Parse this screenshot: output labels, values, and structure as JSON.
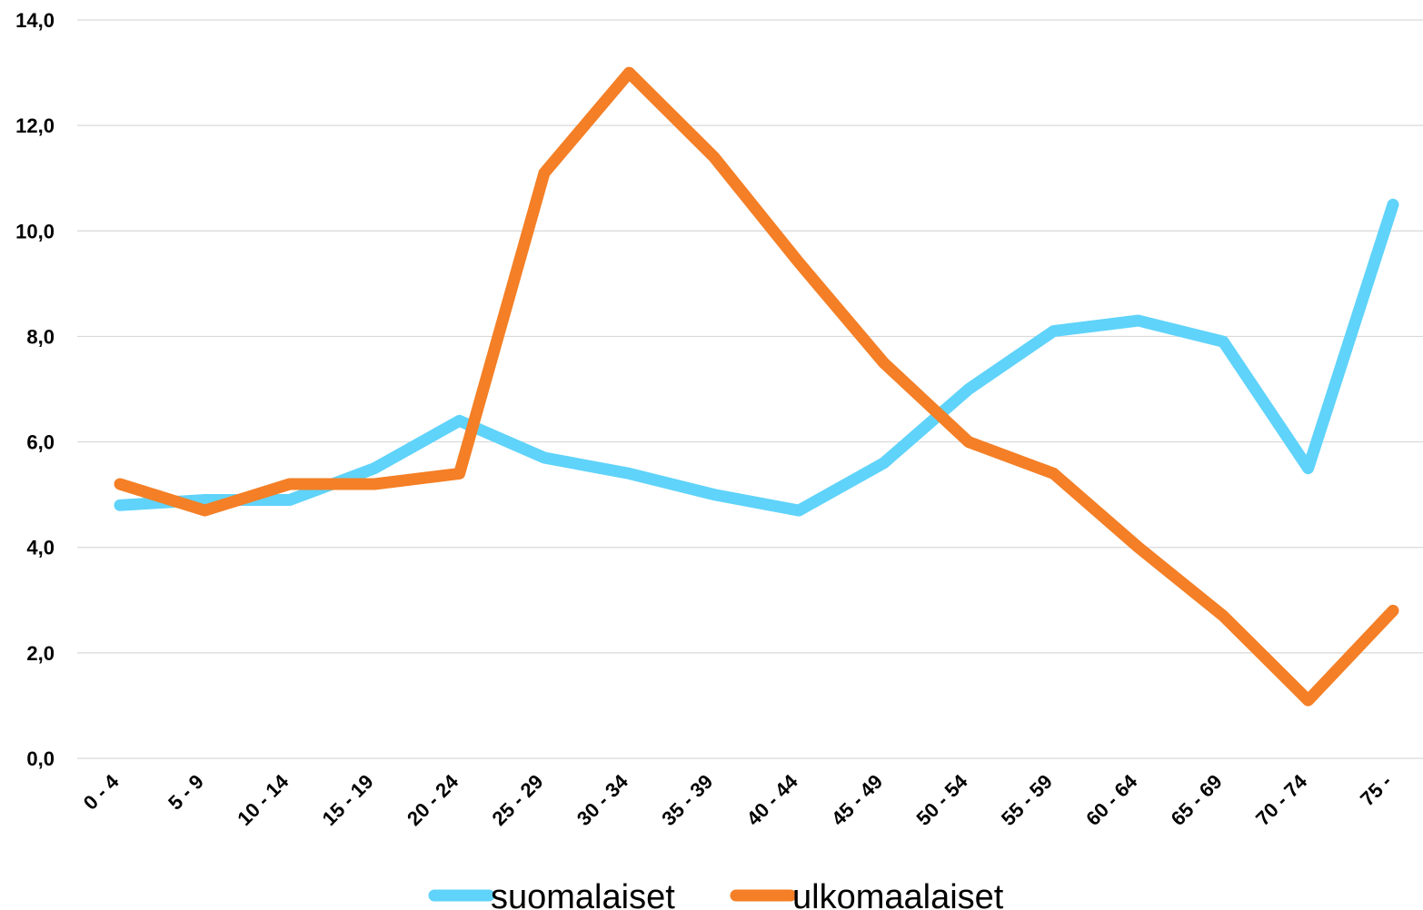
{
  "chart_data": {
    "type": "line",
    "categories": [
      "0 - 4",
      "5 - 9",
      "10 - 14",
      "15 - 19",
      "20 - 24",
      "25 - 29",
      "30 - 34",
      "35 - 39",
      "40 - 44",
      "45 - 49",
      "50 - 54",
      "55 - 59",
      "60 - 64",
      "65 - 69",
      "70 - 74",
      "75 -"
    ],
    "series": [
      {
        "name": "suomalaiset",
        "color": "#5fd3fa",
        "values": [
          4.8,
          4.9,
          4.9,
          5.5,
          6.4,
          5.7,
          5.4,
          5.0,
          4.7,
          5.6,
          7.0,
          8.1,
          8.3,
          7.9,
          5.5,
          10.5
        ]
      },
      {
        "name": "ulkomaalaiset",
        "color": "#f47f26",
        "values": [
          5.2,
          4.7,
          5.2,
          5.2,
          5.4,
          11.1,
          13.0,
          11.4,
          9.4,
          7.5,
          6.0,
          5.4,
          4.0,
          2.7,
          1.1,
          2.8
        ]
      }
    ],
    "yticks": [
      "0,0",
      "2,0",
      "4,0",
      "6,0",
      "8,0",
      "10,0",
      "12,0",
      "14,0"
    ],
    "ylim": [
      0,
      14
    ],
    "grid": true,
    "legend": "bottom"
  }
}
